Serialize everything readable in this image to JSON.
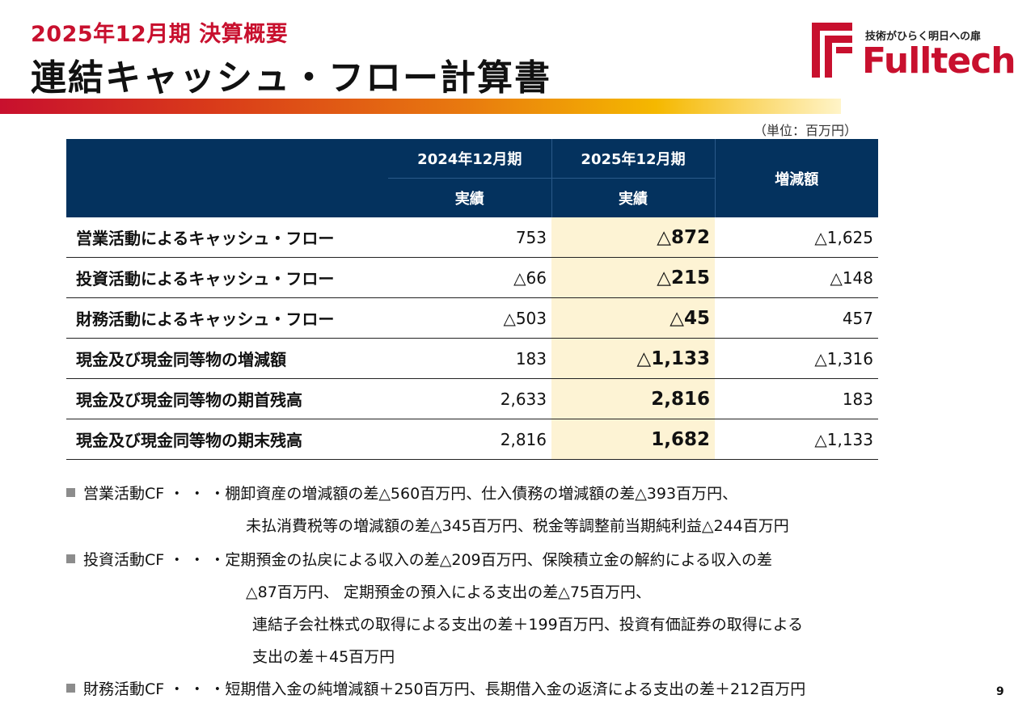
{
  "header": {
    "subtitle": "2025年12月期 決算概要",
    "title": "連結キャッシュ・フロー計算書"
  },
  "logo": {
    "tagline": "技術がひらく明日への扉",
    "wordmark": "Fulltech",
    "brand_color": "#c8102e",
    "icon": "fulltech-logo-mark-icon"
  },
  "unit_note": "（単位：百万円）",
  "table": {
    "col_prev_period": "2024年12月期",
    "col_prev_sub": "実績",
    "col_curr_period": "2025年12月期",
    "col_curr_sub": "実績",
    "col_change": "増減額",
    "header_color": "#04325e",
    "highlight_color": "#fdf3d4",
    "rows": [
      {
        "label": "営業活動によるキャッシュ・フロー",
        "prev": "753",
        "curr": "△872",
        "change": "△1,625"
      },
      {
        "label": "投資活動によるキャッシュ・フロー",
        "prev": "△66",
        "curr": "△215",
        "change": "△148"
      },
      {
        "label": "財務活動によるキャッシュ・フロー",
        "prev": "△503",
        "curr": "△45",
        "change": "457"
      },
      {
        "label": "現金及び現金同等物の増減額",
        "prev": "183",
        "curr": "△1,133",
        "change": "△1,316"
      },
      {
        "label": "現金及び現金同等物の期首残高",
        "prev": "2,633",
        "curr": "2,816",
        "change": "183"
      },
      {
        "label": "現金及び現金同等物の期末残高",
        "prev": "2,816",
        "curr": "1,682",
        "change": "△1,133"
      }
    ]
  },
  "notes": {
    "operating_line1": "営業活動CF ・ ・ ・棚卸資産の増減額の差△560百万円、仕入債務の増減額の差△393百万円、",
    "operating_line2": "未払消費税等の増減額の差△345百万円、税金等調整前当期純利益△244百万円",
    "investing_line1": "投資活動CF ・ ・ ・定期預金の払戻による収入の差△209百万円、保険積立金の解約による収入の差",
    "investing_line2": "△87百万円、 定期預金の預入による支出の差△75百万円、",
    "investing_line3": "連結子会社株式の取得による支出の差＋199百万円、投資有価証券の取得による",
    "investing_line4": "支出の差＋45百万円",
    "financing_line1": "財務活動CF ・ ・ ・短期借入金の純増減額＋250百万円、長期借入金の返済による支出の差＋212百万円"
  },
  "page_number": "9"
}
